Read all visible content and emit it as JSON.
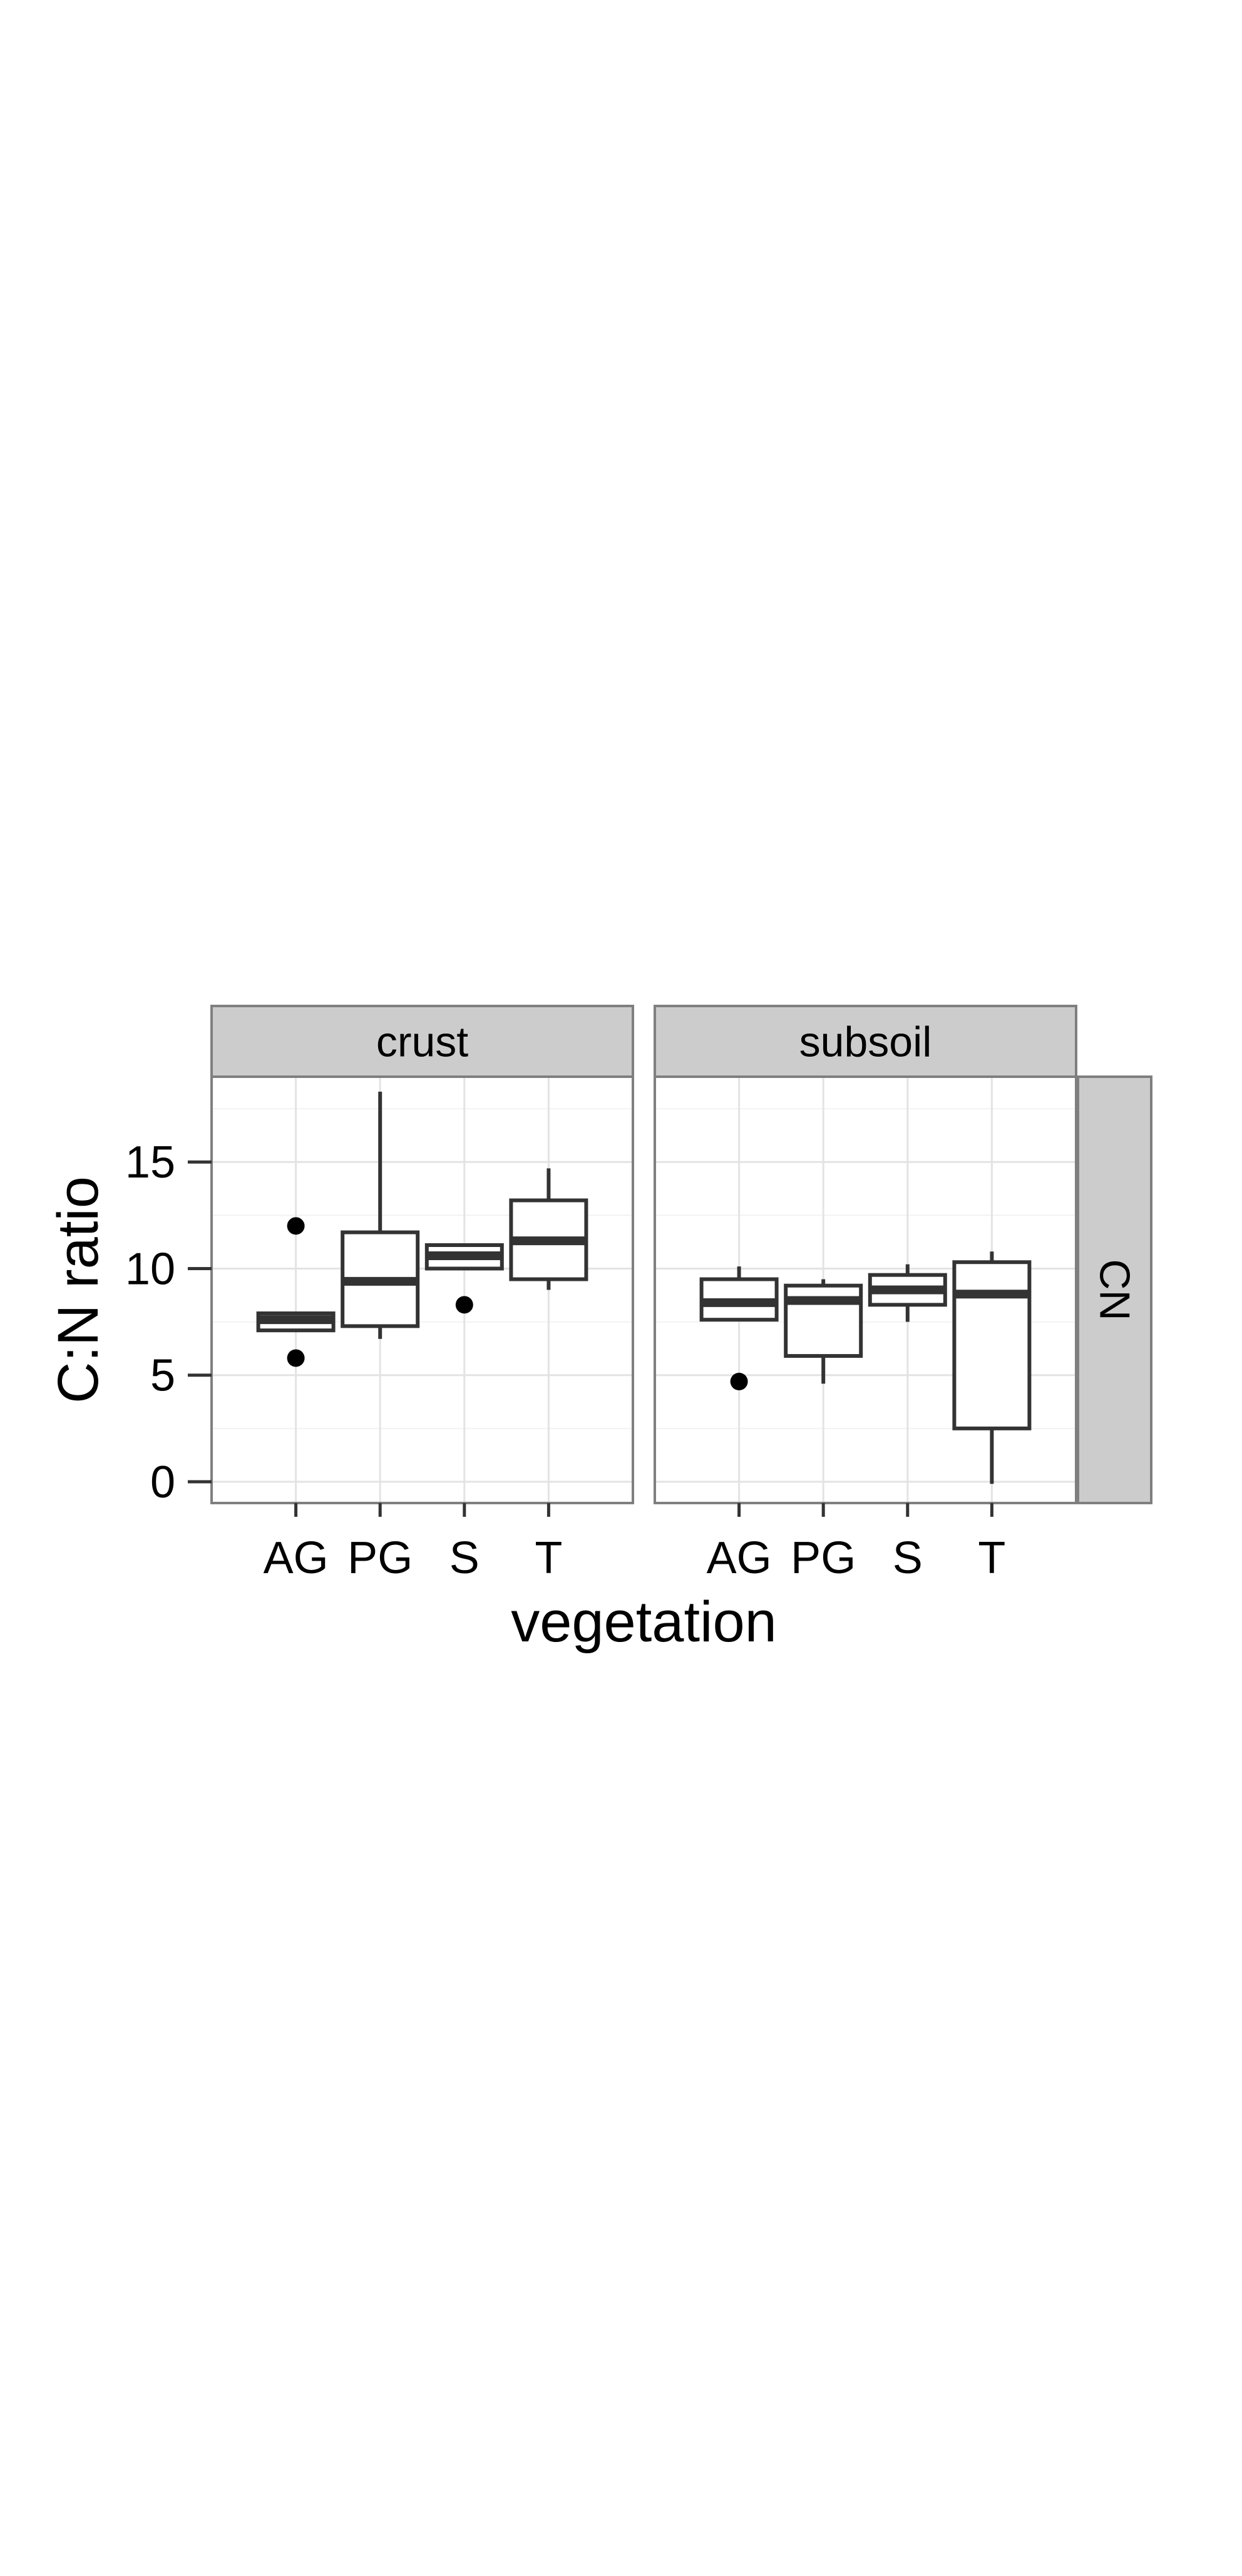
{
  "chart_data": {
    "type": "box",
    "xlabel": "vegetation",
    "ylabel": "C:N ratio",
    "ylim": [
      -1,
      19
    ],
    "yticks": [
      0,
      5,
      10,
      15
    ],
    "categories": [
      "AG",
      "PG",
      "S",
      "T"
    ],
    "row_strip": "CN",
    "grid": true,
    "facets": [
      {
        "label": "crust",
        "boxes": [
          {
            "category": "AG",
            "whisker_low": 7.1,
            "q1": 7.1,
            "median": 7.6,
            "q3": 7.9,
            "whisker_high": 7.9,
            "outliers": [
              12.0,
              5.8
            ]
          },
          {
            "category": "PG",
            "whisker_low": 6.7,
            "q1": 7.3,
            "median": 9.4,
            "q3": 11.7,
            "whisker_high": 18.3,
            "outliers": []
          },
          {
            "category": "S",
            "whisker_low": 10.0,
            "q1": 10.0,
            "median": 10.6,
            "q3": 11.1,
            "whisker_high": 11.1,
            "outliers": [
              8.3
            ]
          },
          {
            "category": "T",
            "whisker_low": 9.0,
            "q1": 9.5,
            "median": 11.3,
            "q3": 13.2,
            "whisker_high": 14.7,
            "outliers": []
          }
        ]
      },
      {
        "label": "subsoil",
        "boxes": [
          {
            "category": "AG",
            "whisker_low": 7.6,
            "q1": 7.6,
            "median": 8.4,
            "q3": 9.5,
            "whisker_high": 10.1,
            "outliers": [
              4.7
            ]
          },
          {
            "category": "PG",
            "whisker_low": 4.6,
            "q1": 5.9,
            "median": 8.5,
            "q3": 9.2,
            "whisker_high": 9.5,
            "outliers": []
          },
          {
            "category": "S",
            "whisker_low": 7.5,
            "q1": 8.3,
            "median": 9.0,
            "q3": 9.7,
            "whisker_high": 10.2,
            "outliers": []
          },
          {
            "category": "T",
            "whisker_low": -0.1,
            "q1": 2.5,
            "median": 8.8,
            "q3": 10.3,
            "whisker_high": 10.8,
            "outliers": []
          }
        ]
      }
    ]
  }
}
